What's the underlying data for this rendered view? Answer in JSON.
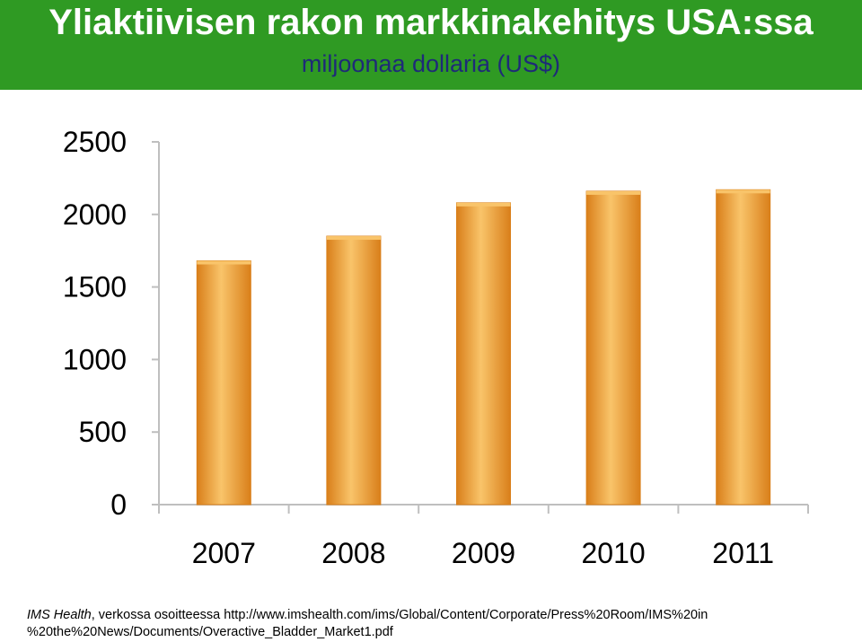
{
  "header": {
    "title": "Yliaktiivisen rakon markkinakehitys USA:ssa",
    "subtitle": "miljoonaa dollaria (US$)"
  },
  "colors": {
    "banner": "#2f9a23",
    "bar": "#f4a235",
    "bar_light": "#f9c46a",
    "bar_dark": "#d97f1a",
    "subtitle": "#1e2a78",
    "axis": "#bfbfbf"
  },
  "chart_data": {
    "type": "bar",
    "categories": [
      "2007",
      "2008",
      "2009",
      "2010",
      "2011"
    ],
    "values": [
      1680,
      1850,
      2080,
      2160,
      2170
    ],
    "ylim": [
      0,
      2500
    ],
    "yticks": [
      "0",
      "500",
      "1000",
      "1500",
      "2000",
      "2500"
    ],
    "grid": false,
    "legend": "none"
  },
  "source": {
    "org": "IMS Health",
    "text": ", verkossa osoitteessa http://www.imshealth.com/ims/Global/Content/Corporate/Press%20Room/IMS%20in",
    "text2": "%20the%20News/Documents/Overactive_Bladder_Market1.pdf"
  }
}
